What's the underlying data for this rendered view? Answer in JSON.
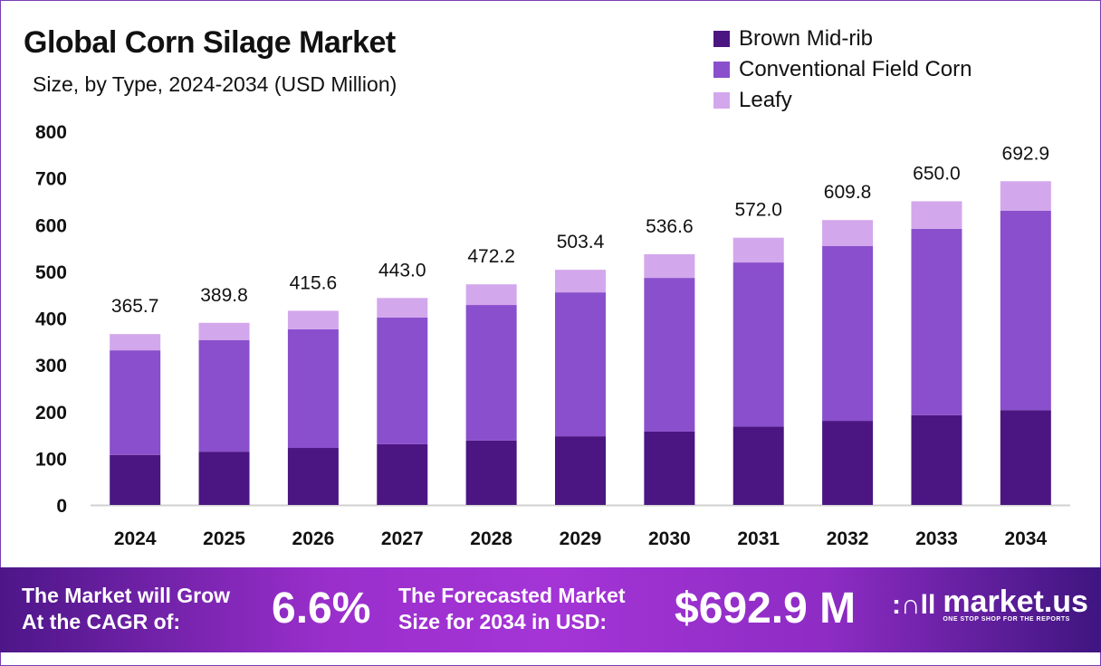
{
  "chart_data": {
    "type": "bar",
    "stacked": true,
    "title": "Global Corn Silage Market",
    "subtitle": "Size, by Type, 2024-2034 (USD Million)",
    "categories": [
      "2024",
      "2025",
      "2026",
      "2027",
      "2028",
      "2029",
      "2030",
      "2031",
      "2032",
      "2033",
      "2034"
    ],
    "series": [
      {
        "name": "Brown Mid-rib",
        "color": "#4b1582",
        "values": [
          107,
          114,
          122,
          130,
          138,
          147,
          157,
          168,
          180,
          192,
          203
        ]
      },
      {
        "name": "Conventional Field Corn",
        "color": "#8a4fcc",
        "values": [
          224,
          239,
          254,
          271,
          290,
          308,
          329,
          351,
          374,
          399,
          427
        ]
      },
      {
        "name": "Leafy",
        "color": "#d3a7ec",
        "values": [
          34.7,
          36.8,
          39.6,
          42.0,
          44.2,
          48.4,
          50.6,
          53.0,
          55.8,
          59.0,
          62.9
        ]
      }
    ],
    "totals": [
      "365.7",
      "389.8",
      "415.6",
      "443.0",
      "472.2",
      "503.4",
      "536.6",
      "572.0",
      "609.8",
      "650.0",
      "692.9"
    ],
    "yticks": [
      "0",
      "100",
      "200",
      "300",
      "400",
      "500",
      "600",
      "700",
      "800"
    ],
    "ylim": [
      0,
      800
    ],
    "xlabel": "",
    "ylabel": "",
    "grid": false,
    "legend": "top-right"
  },
  "footer": {
    "cagr_label_1": "The Market will Grow",
    "cagr_label_2": "At the CAGR of:",
    "cagr_value": "6.6%",
    "forecast_label_1": "The Forecasted Market",
    "forecast_label_2": "Size for 2034 in USD:",
    "forecast_value": "$692.9 M",
    "brand": "market.us",
    "tagline": "ONE STOP SHOP FOR THE REPORTS"
  }
}
